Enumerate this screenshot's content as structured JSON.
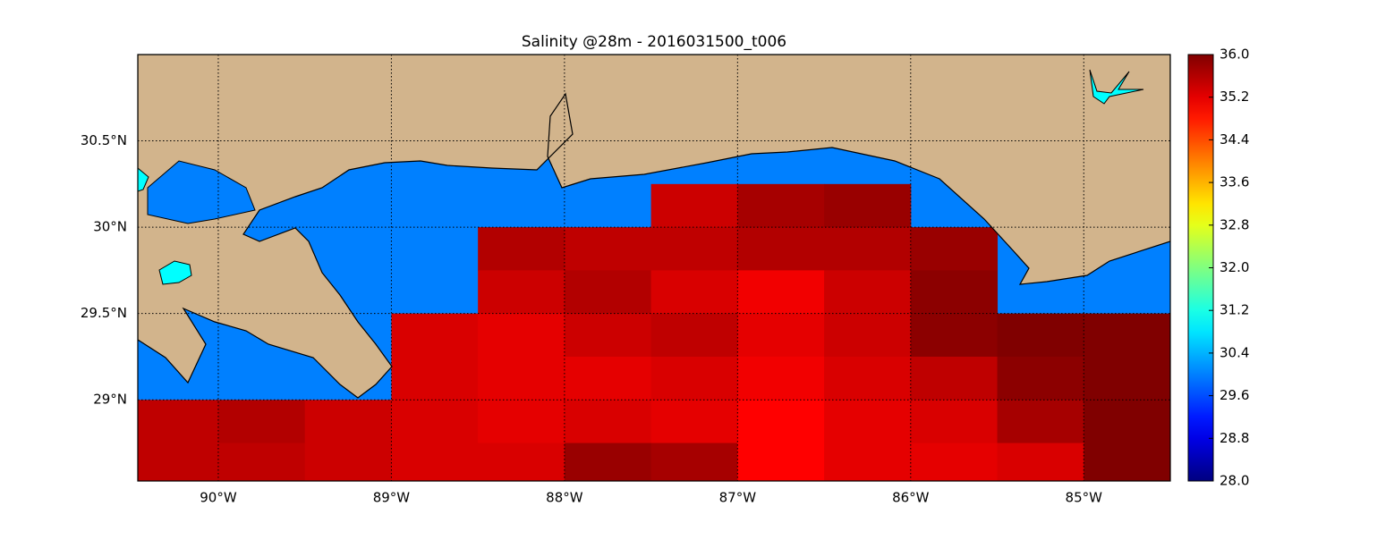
{
  "chart_data": {
    "type": "map",
    "title": "Salinity @28m - 2016031500_t006",
    "xlim": [
      -90.465,
      -84.5
    ],
    "ylim": [
      28.53,
      31.0
    ],
    "xticks": [
      {
        "value": -90,
        "label": "90°W"
      },
      {
        "value": -89,
        "label": "89°W"
      },
      {
        "value": -88,
        "label": "88°W"
      },
      {
        "value": -87,
        "label": "87°W"
      },
      {
        "value": -86,
        "label": "86°W"
      },
      {
        "value": -85,
        "label": "85°W"
      }
    ],
    "yticks": [
      {
        "value": 29,
        "label": "29°N"
      },
      {
        "value": 29.5,
        "label": "29.5°N"
      },
      {
        "value": 30,
        "label": "30°N"
      },
      {
        "value": 30.5,
        "label": "30.5°N"
      }
    ],
    "grid": true,
    "colormap": "jet",
    "clim": [
      28.0,
      36.0
    ],
    "cticks": [
      {
        "value": 28.0,
        "label": "28.0"
      },
      {
        "value": 28.8,
        "label": "28.8"
      },
      {
        "value": 29.6,
        "label": "29.6"
      },
      {
        "value": 30.4,
        "label": "30.4"
      },
      {
        "value": 31.2,
        "label": "31.2"
      },
      {
        "value": 32.0,
        "label": "32.0"
      },
      {
        "value": 32.8,
        "label": "32.8"
      },
      {
        "value": 33.6,
        "label": "33.6"
      },
      {
        "value": 34.4,
        "label": "34.4"
      },
      {
        "value": 35.2,
        "label": "35.2"
      },
      {
        "value": 36.0,
        "label": "36.0"
      }
    ],
    "field": {
      "lon": [
        -90.25,
        -89.75,
        -89.25,
        -88.75,
        -88.25,
        -87.75,
        -87.25,
        -86.75,
        -86.25,
        -85.75,
        -85.25,
        -84.75
      ],
      "lat": [
        30.125,
        29.875,
        29.625,
        29.375,
        29.125,
        28.875,
        28.625
      ],
      "values": [
        [
          null,
          null,
          null,
          null,
          null,
          null,
          35.4,
          35.7,
          35.8,
          null,
          null,
          null
        ],
        [
          null,
          null,
          null,
          null,
          35.6,
          35.5,
          35.5,
          35.6,
          35.6,
          35.8,
          null,
          null
        ],
        [
          null,
          null,
          null,
          null,
          35.4,
          35.6,
          35.3,
          35.1,
          35.4,
          35.9,
          null,
          null
        ],
        [
          null,
          null,
          null,
          35.3,
          35.2,
          35.4,
          35.5,
          35.2,
          35.4,
          35.9,
          36.0,
          36.0
        ],
        [
          null,
          null,
          null,
          35.3,
          35.2,
          35.2,
          35.3,
          35.1,
          35.3,
          35.5,
          35.9,
          36.0
        ],
        [
          35.5,
          35.6,
          35.4,
          35.3,
          35.2,
          35.3,
          35.2,
          35.0,
          35.2,
          35.3,
          35.7,
          36.0
        ],
        [
          35.5,
          35.5,
          35.4,
          35.3,
          35.3,
          35.8,
          35.7,
          35.0,
          35.2,
          35.2,
          35.3,
          36.0
        ]
      ]
    }
  }
}
